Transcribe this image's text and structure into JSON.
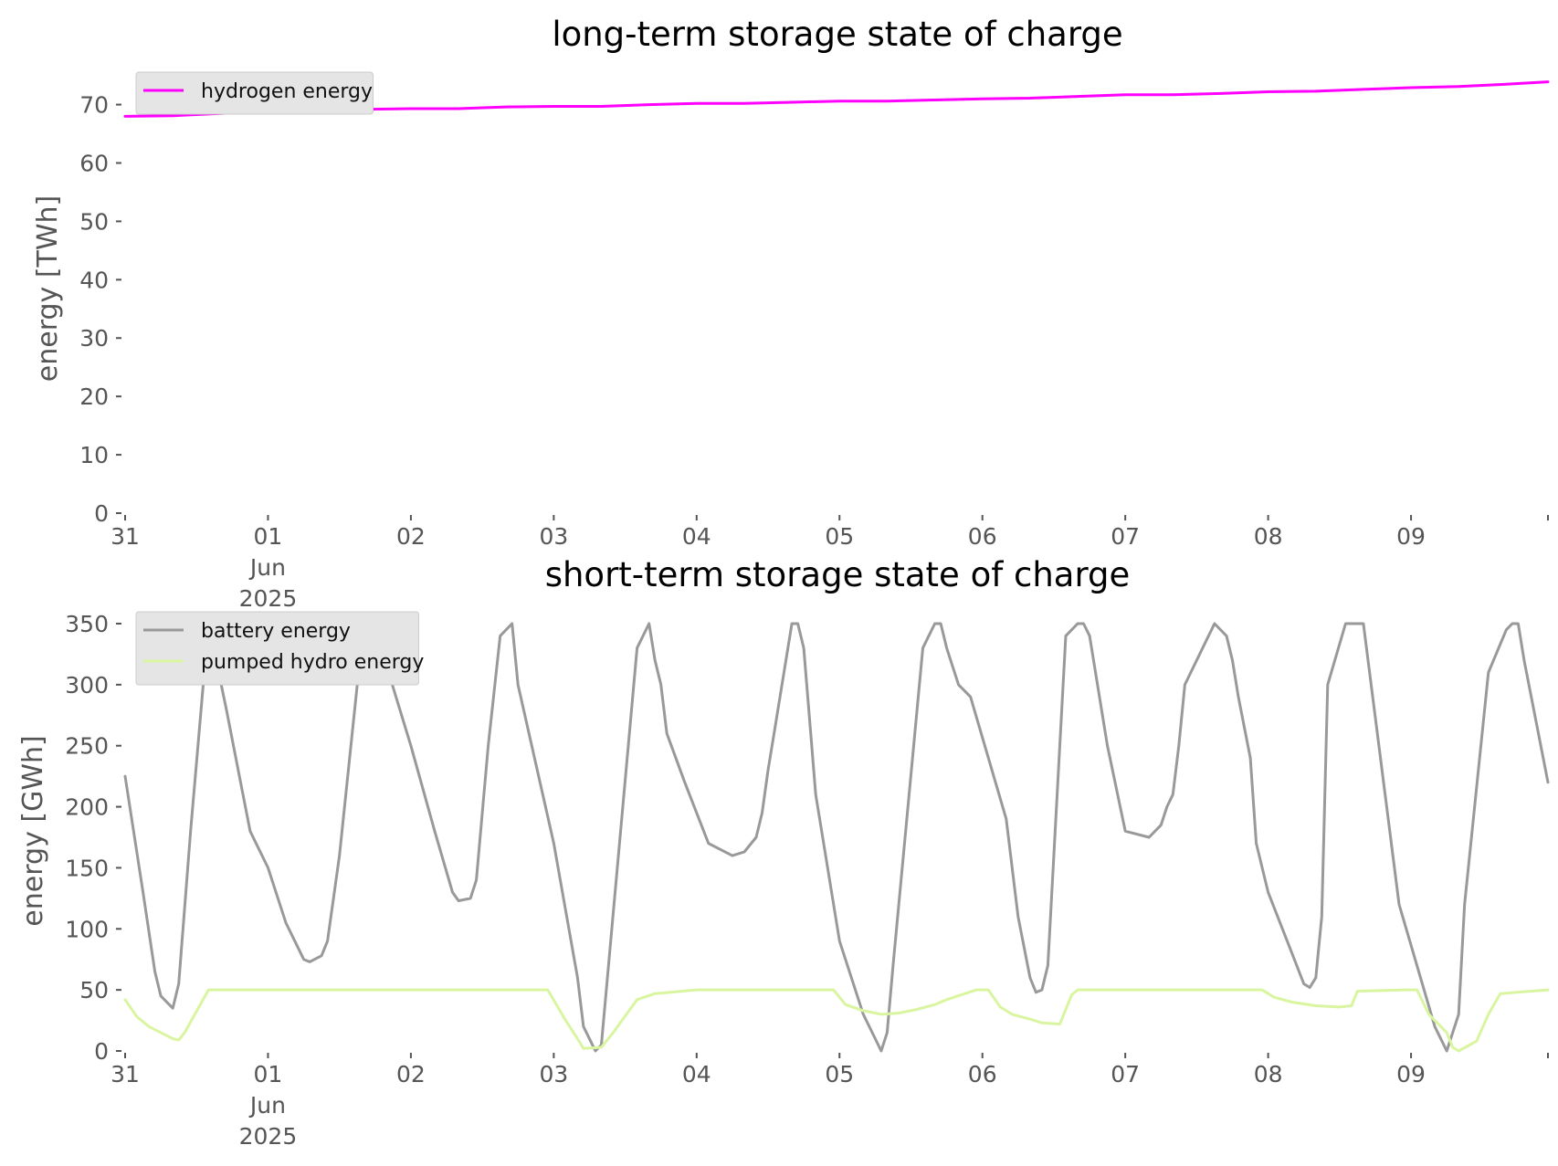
{
  "chart_data": [
    {
      "type": "line",
      "title": "long-term storage state of charge",
      "ylabel": "energy [TWh]",
      "xlabel": "",
      "ylim": [
        0,
        74
      ],
      "yticks": [
        0,
        10,
        20,
        30,
        40,
        50,
        60,
        70
      ],
      "xlim": [
        "2025-05-31",
        "2025-06-09T23:00"
      ],
      "xtick_labels": [
        {
          "date": "2025-05-31",
          "lines": [
            "31"
          ]
        },
        {
          "date": "2025-06-01",
          "lines": [
            "01",
            "Jun",
            "2025"
          ]
        },
        {
          "date": "2025-06-02",
          "lines": [
            "02"
          ]
        },
        {
          "date": "2025-06-03",
          "lines": [
            "03"
          ]
        },
        {
          "date": "2025-06-04",
          "lines": [
            "04"
          ]
        },
        {
          "date": "2025-06-05",
          "lines": [
            "05"
          ]
        },
        {
          "date": "2025-06-06",
          "lines": [
            "06"
          ]
        },
        {
          "date": "2025-06-07",
          "lines": [
            "07"
          ]
        },
        {
          "date": "2025-06-08",
          "lines": [
            "08"
          ]
        },
        {
          "date": "2025-06-09",
          "lines": [
            "09"
          ]
        }
      ],
      "grid": false,
      "legend_position": "top-left",
      "series": [
        {
          "name": "hydrogen energy",
          "color": "#ff00ff",
          "x": [
            "2025-05-31T00:00",
            "2025-05-31T08:00",
            "2025-05-31T16:00",
            "2025-06-01T00:00",
            "2025-06-01T08:00",
            "2025-06-01T16:00",
            "2025-06-02T00:00",
            "2025-06-02T08:00",
            "2025-06-02T16:00",
            "2025-06-03T00:00",
            "2025-06-03T08:00",
            "2025-06-03T16:00",
            "2025-06-04T00:00",
            "2025-06-04T08:00",
            "2025-06-04T16:00",
            "2025-06-05T00:00",
            "2025-06-05T08:00",
            "2025-06-05T16:00",
            "2025-06-06T00:00",
            "2025-06-06T08:00",
            "2025-06-06T16:00",
            "2025-06-07T00:00",
            "2025-06-07T08:00",
            "2025-06-07T16:00",
            "2025-06-08T00:00",
            "2025-06-08T08:00",
            "2025-06-08T16:00",
            "2025-06-09T00:00",
            "2025-06-09T08:00",
            "2025-06-09T16:00",
            "2025-06-09T23:00"
          ],
          "y": [
            68.0,
            68.1,
            68.5,
            68.8,
            68.9,
            69.2,
            69.3,
            69.3,
            69.6,
            69.7,
            69.7,
            70.0,
            70.2,
            70.2,
            70.4,
            70.6,
            70.6,
            70.8,
            71.0,
            71.1,
            71.4,
            71.7,
            71.7,
            71.9,
            72.2,
            72.3,
            72.6,
            72.9,
            73.1,
            73.5,
            73.9
          ]
        }
      ]
    },
    {
      "type": "line",
      "title": "short-term storage state of charge",
      "ylabel": "energy [GWh]",
      "xlabel": "",
      "ylim": [
        0,
        350
      ],
      "yticks": [
        0,
        50,
        100,
        150,
        200,
        250,
        300,
        350
      ],
      "xlim": [
        "2025-05-31",
        "2025-06-09T23:00"
      ],
      "xtick_labels": [
        {
          "date": "2025-05-31",
          "lines": [
            "31"
          ]
        },
        {
          "date": "2025-06-01",
          "lines": [
            "01",
            "Jun",
            "2025"
          ]
        },
        {
          "date": "2025-06-02",
          "lines": [
            "02"
          ]
        },
        {
          "date": "2025-06-03",
          "lines": [
            "03"
          ]
        },
        {
          "date": "2025-06-04",
          "lines": [
            "04"
          ]
        },
        {
          "date": "2025-06-05",
          "lines": [
            "05"
          ]
        },
        {
          "date": "2025-06-06",
          "lines": [
            "06"
          ]
        },
        {
          "date": "2025-06-07",
          "lines": [
            "07"
          ]
        },
        {
          "date": "2025-06-08",
          "lines": [
            "08"
          ]
        },
        {
          "date": "2025-06-09",
          "lines": [
            "09"
          ]
        }
      ],
      "grid": false,
      "legend_position": "top-left",
      "series": [
        {
          "name": "battery energy",
          "color": "#999999",
          "x": [
            "2025-05-31T00:00",
            "2025-05-31T03:00",
            "2025-05-31T05:00",
            "2025-05-31T06:00",
            "2025-05-31T08:00",
            "2025-05-31T09:00",
            "2025-05-31T11:00",
            "2025-05-31T14:00",
            "2025-05-31T17:00",
            "2025-05-31T21:00",
            "2025-06-01T00:00",
            "2025-06-01T03:00",
            "2025-06-01T06:00",
            "2025-06-01T07:00",
            "2025-06-01T09:00",
            "2025-06-01T10:00",
            "2025-06-01T12:00",
            "2025-06-01T15:00",
            "2025-06-01T18:00",
            "2025-06-01T19:00",
            "2025-06-02T00:00",
            "2025-06-02T04:00",
            "2025-06-02T07:00",
            "2025-06-02T08:00",
            "2025-06-02T10:00",
            "2025-06-02T11:00",
            "2025-06-02T13:00",
            "2025-06-02T15:00",
            "2025-06-02T17:00",
            "2025-06-02T18:00",
            "2025-06-03T00:00",
            "2025-06-03T04:00",
            "2025-06-03T05:00",
            "2025-06-03T07:00",
            "2025-06-03T08:00",
            "2025-06-03T14:00",
            "2025-06-03T16:00",
            "2025-06-03T17:00",
            "2025-06-03T18:00",
            "2025-06-03T19:00",
            "2025-06-03T22:00",
            "2025-06-04T02:00",
            "2025-06-04T06:00",
            "2025-06-04T08:00",
            "2025-06-04T10:00",
            "2025-06-04T11:00",
            "2025-06-04T12:00",
            "2025-06-04T13:00",
            "2025-06-04T16:00",
            "2025-06-04T17:00",
            "2025-06-04T18:00",
            "2025-06-04T20:00",
            "2025-06-05T00:00",
            "2025-06-05T04:00",
            "2025-06-05T06:00",
            "2025-06-05T07:00",
            "2025-06-05T08:00",
            "2025-06-05T09:00",
            "2025-06-05T14:00",
            "2025-06-05T16:00",
            "2025-06-05T17:00",
            "2025-06-05T18:00",
            "2025-06-05T20:00",
            "2025-06-05T22:00",
            "2025-06-06T04:00",
            "2025-06-06T06:00",
            "2025-06-06T08:00",
            "2025-06-06T09:00",
            "2025-06-06T10:00",
            "2025-06-06T11:00",
            "2025-06-06T14:00",
            "2025-06-06T16:00",
            "2025-06-06T17:00",
            "2025-06-06T18:00",
            "2025-06-06T21:00",
            "2025-06-07T00:00",
            "2025-06-07T04:00",
            "2025-06-07T06:00",
            "2025-06-07T07:00",
            "2025-06-07T08:00",
            "2025-06-07T09:00",
            "2025-06-07T10:00",
            "2025-06-07T13:00",
            "2025-06-07T15:00",
            "2025-06-07T17:00",
            "2025-06-07T18:00",
            "2025-06-07T19:00",
            "2025-06-07T21:00",
            "2025-06-07T22:00",
            "2025-06-08T00:00",
            "2025-06-08T04:00",
            "2025-06-08T06:00",
            "2025-06-08T07:00",
            "2025-06-08T08:00",
            "2025-06-08T09:00",
            "2025-06-08T10:00",
            "2025-06-08T13:00",
            "2025-06-08T15:00",
            "2025-06-08T16:00",
            "2025-06-08T22:00",
            "2025-06-09T04:00",
            "2025-06-09T06:00",
            "2025-06-09T07:00",
            "2025-06-09T08:00",
            "2025-06-09T09:00",
            "2025-06-09T13:00",
            "2025-06-09T16:00",
            "2025-06-09T17:00",
            "2025-06-09T18:00",
            "2025-06-09T19:00",
            "2025-06-09T23:00"
          ],
          "y": [
            225,
            130,
            65,
            45,
            35,
            55,
            180,
            350,
            280,
            180,
            150,
            105,
            75,
            73,
            78,
            90,
            160,
            300,
            350,
            330,
            250,
            180,
            130,
            123,
            125,
            140,
            250,
            340,
            350,
            300,
            170,
            60,
            20,
            0,
            5,
            330,
            350,
            320,
            300,
            260,
            220,
            170,
            160,
            163,
            175,
            195,
            230,
            260,
            350,
            350,
            330,
            210,
            90,
            30,
            10,
            0,
            15,
            70,
            330,
            350,
            350,
            330,
            300,
            290,
            190,
            110,
            60,
            48,
            50,
            70,
            340,
            350,
            350,
            340,
            250,
            180,
            175,
            185,
            200,
            210,
            250,
            300,
            330,
            350,
            340,
            320,
            290,
            240,
            170,
            130,
            80,
            55,
            52,
            60,
            110,
            300,
            350,
            350,
            350,
            120,
            20,
            0,
            15,
            30,
            120,
            310,
            345,
            350,
            350,
            320,
            220
          ]
        },
        {
          "name": "pumped hydro energy",
          "color": "#d9f5a0",
          "x": [
            "2025-05-31T00:00",
            "2025-05-31T02:00",
            "2025-05-31T04:00",
            "2025-05-31T06:00",
            "2025-05-31T08:00",
            "2025-05-31T09:00",
            "2025-05-31T10:00",
            "2025-05-31T14:00",
            "2025-05-31T15:00",
            "2025-06-02T23:00",
            "2025-06-03T02:00",
            "2025-06-03T04:00",
            "2025-06-03T05:00",
            "2025-06-03T08:00",
            "2025-06-03T10:00",
            "2025-06-03T14:00",
            "2025-06-03T17:00",
            "2025-06-04T00:00",
            "2025-06-04T23:00",
            "2025-06-05T01:00",
            "2025-06-05T04:00",
            "2025-06-05T07:00",
            "2025-06-05T10:00",
            "2025-06-05T13:00",
            "2025-06-05T16:00",
            "2025-06-05T18:00",
            "2025-06-05T23:00",
            "2025-06-06T01:00",
            "2025-06-06T03:00",
            "2025-06-06T05:00",
            "2025-06-06T08:00",
            "2025-06-06T10:00",
            "2025-06-06T13:00",
            "2025-06-06T15:00",
            "2025-06-06T16:00",
            "2025-06-07T23:00",
            "2025-06-08T01:00",
            "2025-06-08T04:00",
            "2025-06-08T08:00",
            "2025-06-08T12:00",
            "2025-06-08T14:00",
            "2025-06-08T15:00",
            "2025-06-08T23:00",
            "2025-06-09T01:00",
            "2025-06-09T03:00",
            "2025-06-09T06:00",
            "2025-06-09T07:00",
            "2025-06-09T08:00",
            "2025-06-09T11:00",
            "2025-06-09T13:00",
            "2025-06-09T15:00",
            "2025-06-09T23:00"
          ],
          "y": [
            42,
            28,
            20,
            15,
            10,
            9,
            15,
            50,
            50,
            50,
            25,
            10,
            2,
            3,
            15,
            42,
            47,
            50,
            50,
            38,
            33,
            30,
            31,
            34,
            38,
            42,
            50,
            50,
            36,
            30,
            26,
            23,
            22,
            46,
            50,
            50,
            44,
            40,
            37,
            36,
            37,
            49,
            50,
            50,
            30,
            15,
            3,
            0,
            8,
            30,
            47,
            50
          ]
        }
      ]
    }
  ]
}
